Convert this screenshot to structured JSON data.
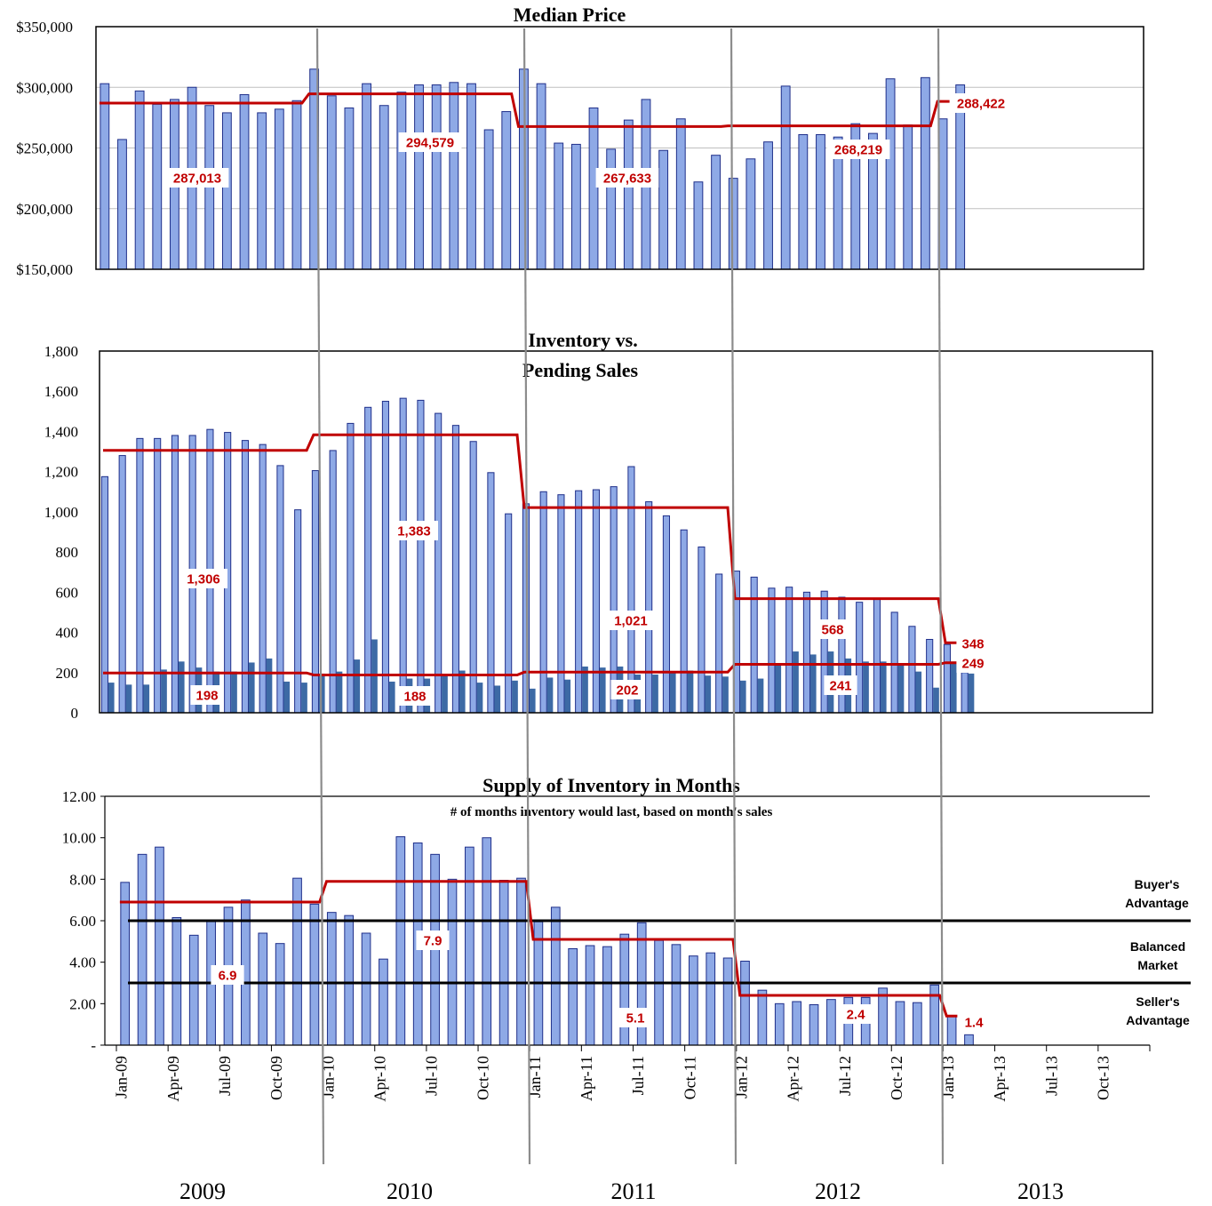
{
  "colors": {
    "bar_fill": "#8EA9E6",
    "bar_stroke": "#1F2F8A",
    "pending_fill": "#3D6AA5",
    "avg_line": "#C00000",
    "avg_label": "#C00000",
    "divider": "#8C8C8C",
    "grid": "#BFBFBF",
    "threshold": "#000000"
  },
  "year_labels": [
    "2009",
    "2010",
    "2011",
    "2012",
    "2013"
  ],
  "chart_data": [
    {
      "type": "bar",
      "title": "Median Price",
      "xlabel": "",
      "ylabel": "",
      "ylim": [
        150000,
        350000
      ],
      "grid": true,
      "y_ticks": [
        "$150,000",
        "$200,000",
        "$250,000",
        "$300,000",
        "$350,000"
      ],
      "x_range": [
        "Jan-09",
        "Dec-13"
      ],
      "series": [
        {
          "values": [
            303000,
            257000,
            297000,
            286000,
            290000,
            300000,
            285000,
            279000,
            294000,
            279000,
            282000,
            289000,
            315000,
            293000,
            283000,
            303000,
            285000,
            296000,
            302000,
            302000,
            304000,
            303000,
            265000,
            280000,
            315000,
            303000,
            254000,
            253000,
            283000,
            249000,
            273000,
            290000,
            248000,
            274000,
            222000,
            244000,
            225000,
            241000,
            255000,
            301000,
            261000,
            261000,
            259000,
            270000,
            262000,
            307000,
            269000,
            308000,
            274000,
            302000
          ]
        }
      ],
      "averages": [
        {
          "label": "287,013",
          "value": 287013,
          "from": "Jan-09",
          "to": "Dec-09"
        },
        {
          "label": "294,579",
          "value": 294579,
          "from": "Jan-10",
          "to": "Dec-10"
        },
        {
          "label": "267,633",
          "value": 267633,
          "from": "Jan-11",
          "to": "Dec-11"
        },
        {
          "label": "268,219",
          "value": 268219,
          "from": "Jan-12",
          "to": "Dec-12"
        },
        {
          "label": "288,422",
          "value": 288422,
          "from": "Jan-13",
          "to": "Feb-13"
        }
      ]
    },
    {
      "type": "bar",
      "title": "Inventory vs. Pending Sales",
      "title_lines": [
        "Inventory vs.",
        "Pending Sales"
      ],
      "xlabel": "",
      "ylabel": "",
      "ylim": [
        0,
        1800
      ],
      "grid": false,
      "y_ticks": [
        "0",
        "200",
        "400",
        "600",
        "800",
        "1,000",
        "1,200",
        "1,400",
        "1,600",
        "1,800"
      ],
      "x_range": [
        "Jan-09",
        "Dec-13"
      ],
      "series": [
        {
          "values": [
            1175,
            1280,
            1365,
            1365,
            1380,
            1380,
            1410,
            1395,
            1355,
            1335,
            1230,
            1010,
            1205,
            1305,
            1440,
            1520,
            1550,
            1565,
            1555,
            1490,
            1430,
            1350,
            1195,
            990,
            1040,
            1100,
            1085,
            1105,
            1110,
            1125,
            1225,
            1050,
            980,
            910,
            825,
            690,
            705,
            675,
            620,
            625,
            600,
            605,
            575,
            550,
            570,
            500,
            430,
            365,
            340,
            200
          ]
        },
        {
          "values": [
            150,
            140,
            140,
            215,
            255,
            225,
            205,
            205,
            250,
            270,
            155,
            150,
            195,
            205,
            265,
            365,
            155,
            170,
            170,
            190,
            210,
            150,
            135,
            160,
            120,
            175,
            165,
            230,
            225,
            230,
            190,
            190,
            205,
            210,
            185,
            180,
            160,
            170,
            245,
            305,
            290,
            305,
            270,
            255,
            255,
            235,
            205,
            125,
            255,
            195
          ]
        }
      ],
      "averages": [
        {
          "label": "1,306",
          "value": 1306,
          "from": "Jan-09",
          "to": "Dec-09"
        },
        {
          "label": "1,383",
          "value": 1383,
          "from": "Jan-10",
          "to": "Dec-10"
        },
        {
          "label": "1,021",
          "value": 1021,
          "from": "Jan-11",
          "to": "Dec-11"
        },
        {
          "label": "568",
          "value": 568,
          "from": "Jan-12",
          "to": "Dec-12"
        },
        {
          "label": "348",
          "value": 348,
          "from": "Jan-13",
          "to": "Feb-13"
        },
        {
          "label": "198",
          "value": 198,
          "from": "Jan-09",
          "to": "Dec-09"
        },
        {
          "label": "188",
          "value": 188,
          "from": "Jan-10",
          "to": "Dec-10"
        },
        {
          "label": "202",
          "value": 202,
          "from": "Jan-11",
          "to": "Dec-11"
        },
        {
          "label": "241",
          "value": 241,
          "from": "Jan-12",
          "to": "Dec-12"
        },
        {
          "label": "249",
          "value": 249,
          "from": "Jan-13",
          "to": "Feb-13"
        }
      ]
    },
    {
      "type": "bar",
      "title": "Supply of Inventory in Months",
      "subtitle": "# of months inventory would last, based on month's sales",
      "xlabel": "",
      "ylabel": "",
      "ylim": [
        0,
        12
      ],
      "grid": false,
      "y_ticks": [
        "-",
        "2.00",
        "4.00",
        "6.00",
        "8.00",
        "10.00",
        "12.00"
      ],
      "x_ticks": [
        "Jan-09",
        "Apr-09",
        "Jul-09",
        "Oct-09",
        "Jan-10",
        "Apr-10",
        "Jul-10",
        "Oct-10",
        "Jan-11",
        "Apr-11",
        "Jul-11",
        "Oct-11",
        "Jan-12",
        "Apr-12",
        "Jul-12",
        "Oct-12",
        "Jan-13",
        "Apr-13",
        "Jul-13",
        "Oct-13"
      ],
      "x_range": [
        "Jan-09",
        "Dec-13"
      ],
      "series": [
        {
          "values": [
            7.85,
            9.2,
            9.55,
            6.15,
            5.3,
            6.0,
            6.65,
            7.0,
            5.4,
            4.9,
            8.05,
            6.8,
            6.4,
            6.25,
            5.4,
            4.15,
            10.05,
            9.75,
            9.2,
            8.0,
            9.55,
            10.0,
            7.95,
            8.05,
            5.95,
            6.65,
            4.65,
            4.8,
            4.75,
            5.35,
            5.9,
            5.05,
            4.85,
            4.3,
            4.45,
            4.2,
            4.05,
            2.65,
            2.0,
            2.1,
            1.95,
            2.2,
            2.3,
            2.3,
            2.75,
            2.1,
            2.05,
            2.9,
            1.4,
            0.5
          ]
        }
      ],
      "averages": [
        {
          "label": "6.9",
          "value": 6.9,
          "from": "Jan-09",
          "to": "Dec-09"
        },
        {
          "label": "7.9",
          "value": 7.9,
          "from": "Jan-10",
          "to": "Dec-10"
        },
        {
          "label": "5.1",
          "value": 5.1,
          "from": "Jan-11",
          "to": "Dec-11"
        },
        {
          "label": "2.4",
          "value": 2.4,
          "from": "Jan-12",
          "to": "Dec-12"
        },
        {
          "label": "1.4",
          "value": 1.4,
          "from": "Jan-13",
          "to": "Feb-13"
        }
      ],
      "thresholds": [
        6,
        3
      ],
      "annotations": [
        {
          "lines": [
            "Buyer's",
            "Advantage"
          ]
        },
        {
          "lines": [
            "Balanced",
            "Market"
          ]
        },
        {
          "lines": [
            "Seller's",
            "Advantage"
          ]
        }
      ]
    }
  ]
}
